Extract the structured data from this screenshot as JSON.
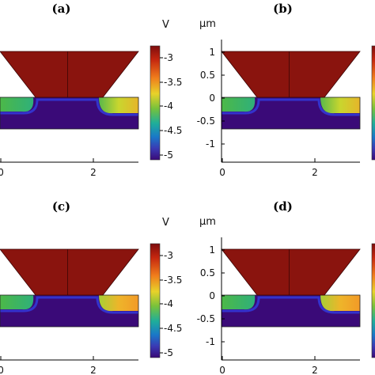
{
  "panels": [
    {
      "label": "(a)",
      "unit": "V",
      "y_unit": ""
    },
    {
      "label": "(b)",
      "unit": "",
      "y_unit": "μm"
    },
    {
      "label": "(c)",
      "unit": "V",
      "y_unit": ""
    },
    {
      "label": "(d)",
      "unit": "",
      "y_unit": "μm"
    }
  ],
  "x_ticks": [
    "0",
    "2"
  ],
  "y_ticks": [
    "1",
    "0.5",
    "0",
    "-0.5",
    "-1"
  ],
  "colorbar_ticks": [
    "-3",
    "-3.5",
    "-4",
    "-4.5",
    "-5"
  ],
  "colors": {
    "gate": "#8a140e",
    "substrate": "#3a0a78",
    "channel": "#3333cc",
    "green": "#44b84a",
    "orange": "#f2a22a"
  },
  "chart_data": {
    "type": "heatmap",
    "colorbar": {
      "min": -5,
      "max": -3,
      "ticks": [
        -3,
        -3.5,
        -4,
        -4.5,
        -5
      ],
      "unit": "V"
    },
    "xlim": [
      0,
      3
    ],
    "ylim": [
      -1,
      1
    ],
    "y_unit": "μm"
  }
}
